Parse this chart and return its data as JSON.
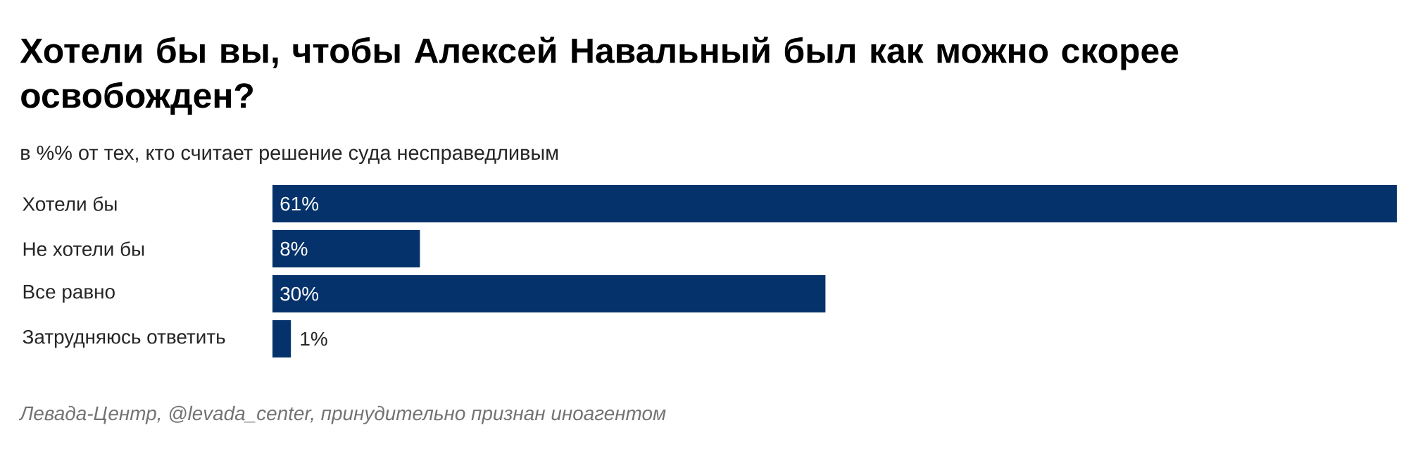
{
  "chart_data": {
    "type": "bar",
    "orientation": "horizontal",
    "title": "Хотели бы вы, чтобы Алексей Навальный был как можно скорее освобожден?",
    "subtitle": "в %% от тех, кто считает решение суда несправедливым",
    "categories": [
      "Хотели бы",
      "Не хотели бы",
      "Все равно",
      "Затрудняюсь ответить"
    ],
    "values": [
      61,
      8,
      30,
      1
    ],
    "color": "#05326a",
    "value_labels": [
      "61%",
      "8%",
      "30%",
      "1%"
    ],
    "annotations": [
      "Левада-Центр, @levada_center, принудительно признан иноагентом"
    ]
  }
}
